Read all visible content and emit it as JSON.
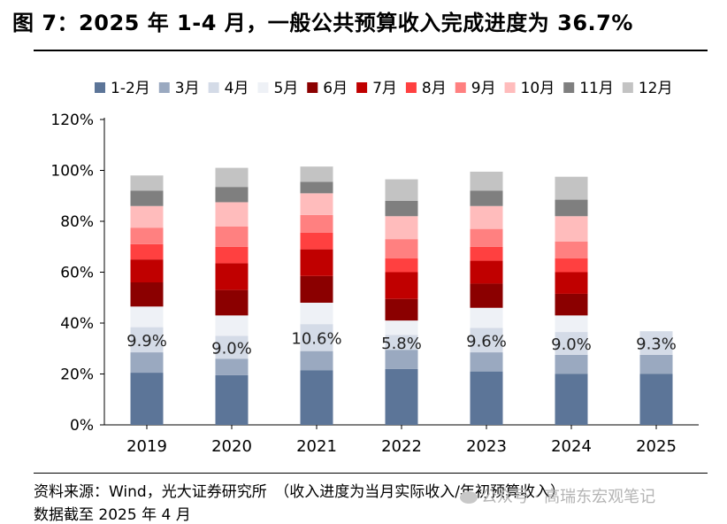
{
  "header": {
    "title": "图 7：2025 年 1-4 月，一般公共预算收入完成进度为 36.7%"
  },
  "footer": {
    "source": "资料来源：Wind，光大证券研究所　（收入进度为当月实际收入/年初预算收入）",
    "date": "数据截至 2025 年 4 月"
  },
  "watermark": {
    "icon": "wechat-icon",
    "text": "公众号 · 高瑞东宏观笔记"
  },
  "chart_data": {
    "type": "bar",
    "stacked": true,
    "categories": [
      "2019",
      "2020",
      "2021",
      "2022",
      "2023",
      "2024",
      "2025"
    ],
    "yticks": [
      "0%",
      "20%",
      "40%",
      "60%",
      "80%",
      "100%",
      "120%"
    ],
    "ylim": [
      0,
      120
    ],
    "legend_position": "top",
    "grid": false,
    "series": [
      {
        "name": "1-2月",
        "color": "#5c7598",
        "values": [
          20.5,
          19.5,
          21.5,
          22,
          21,
          20,
          20
        ]
      },
      {
        "name": "3月",
        "color": "#9aa9c0",
        "values": [
          8,
          6.5,
          7.5,
          7.5,
          7.5,
          7.5,
          7.5
        ]
      },
      {
        "name": "4月",
        "color": "#d4dbe7",
        "values": [
          9.9,
          9.0,
          10.6,
          5.8,
          9.6,
          9.0,
          9.3
        ]
      },
      {
        "name": "5月",
        "color": "#eef1f6",
        "values": [
          8.1,
          8.0,
          8.4,
          5.7,
          7.9,
          6.5,
          null
        ]
      },
      {
        "name": "6月",
        "color": "#8b0000",
        "values": [
          9.5,
          10,
          10.5,
          8.5,
          9.5,
          8.5,
          null
        ]
      },
      {
        "name": "7月",
        "color": "#c00000",
        "values": [
          9,
          10.5,
          10.5,
          10.5,
          9,
          8.5,
          null
        ]
      },
      {
        "name": "8月",
        "color": "#ff4040",
        "values": [
          6,
          6.5,
          6.5,
          5.5,
          5.5,
          5.5,
          null
        ]
      },
      {
        "name": "9月",
        "color": "#ff8080",
        "values": [
          6.5,
          8,
          7,
          7.5,
          7,
          6.5,
          null
        ]
      },
      {
        "name": "10月",
        "color": "#ffbcbc",
        "values": [
          8.5,
          9.5,
          8.5,
          9,
          9,
          10,
          null
        ]
      },
      {
        "name": "11月",
        "color": "#7f7f7f",
        "values": [
          6,
          6,
          4.5,
          6,
          6,
          6.5,
          null
        ]
      },
      {
        "name": "12月",
        "color": "#c3c3c3",
        "values": [
          6,
          7.5,
          6,
          8.5,
          7.5,
          9,
          null
        ]
      }
    ],
    "data_labels": {
      "series": "4月",
      "texts": [
        "9.9%",
        "9.0%",
        "10.6%",
        "5.8%",
        "9.6%",
        "9.0%",
        "9.3%"
      ]
    }
  }
}
